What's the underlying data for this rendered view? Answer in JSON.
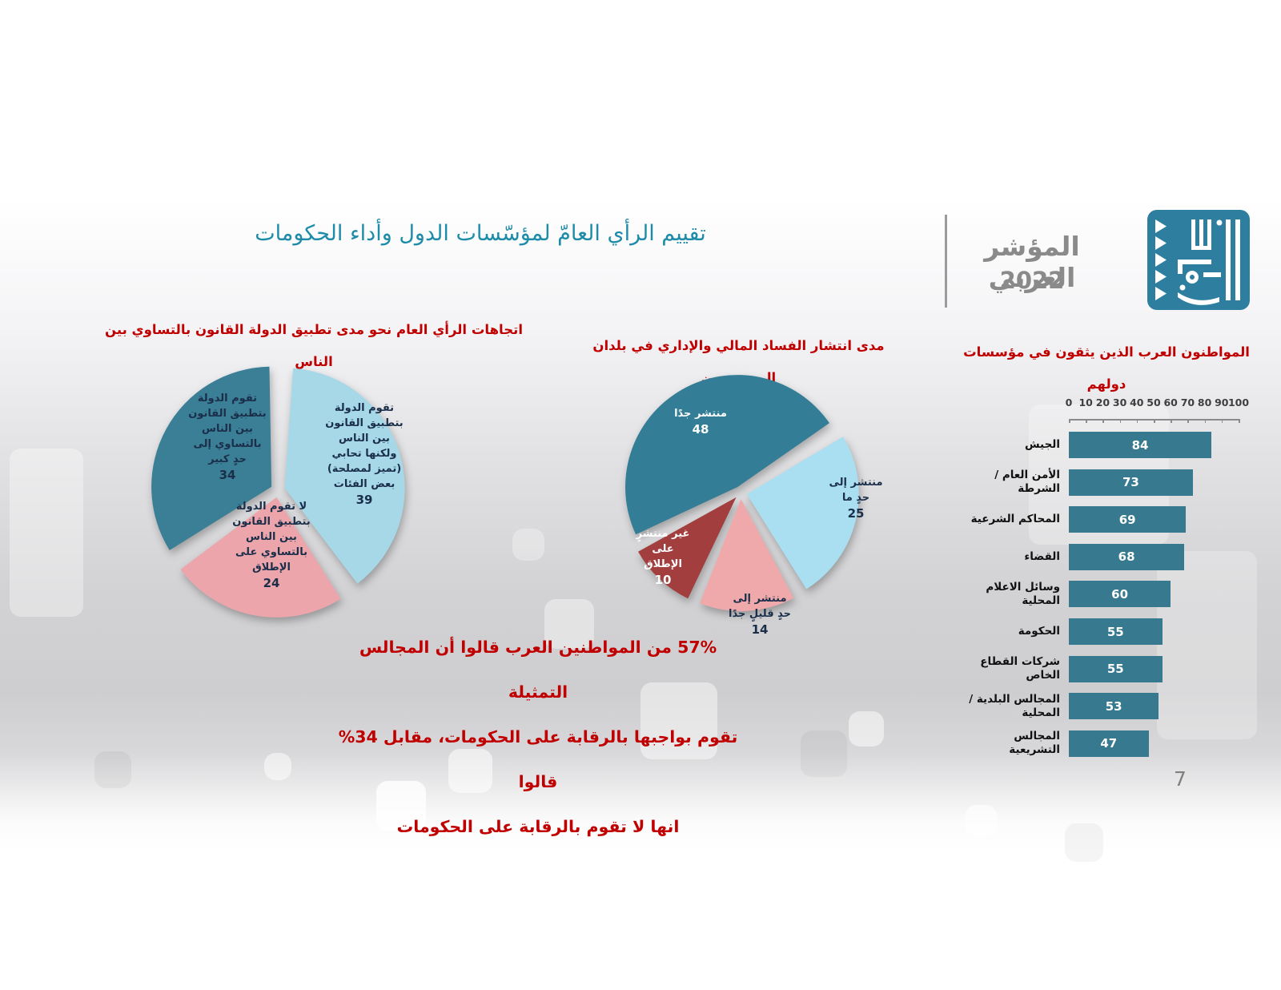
{
  "header": {
    "brand_title": "المؤشر العربي",
    "year": "2022",
    "logo_name": "arab-center-logo",
    "logo_color": "#2E7F9F",
    "text_color": "#8A8A8A"
  },
  "main_title": "تقييم الرأي العامّ لمؤسّسات الدول وأداء الحكومات",
  "main_title_color": "#1E8CA8",
  "accent_red": "#C00000",
  "stat_note": {
    "line1": "57% من المواطنين العرب قالوا أن المجالس التمثيلة",
    "line2": "تقوم بواجبها بالرقابة على الحكومات، مقابل 34% قالوا",
    "line3": "انها لا تقوم بالرقابة على الحكومات"
  },
  "page_number": "7",
  "chart_data": [
    {
      "id": "law-equality-pie",
      "type": "pie",
      "title": "اتجاهات الرأي العام نحو مدى تطبيق الدولة القانون بالتساوي بين الناس",
      "slices": [
        {
          "label": "تقوم الدولة\nبتطبيق القانون\nبين الناس\nبالتساوي إلى\nحدٍ كبير",
          "value": 34,
          "color": "#3B7F96",
          "label_color": "#1A2E4A"
        },
        {
          "label": "تقوم الدولة\nبتطبيق القانون\nبين الناس\nولكنها تحابي\n(تميز لمصلحة)\nبعض الفئات",
          "value": 39,
          "color": "#A6D8E8",
          "label_color": "#1A2E4A"
        },
        {
          "label": "لا تقوم الدولة\nبتطبيق القانون\nبين الناس\nبالتساوي على\nالإطلاق",
          "value": 24,
          "color": "#EDA5AC",
          "label_color": "#1A2E4A"
        }
      ]
    },
    {
      "id": "corruption-pie",
      "type": "pie",
      "title": "مدى انتشار الفساد المالي والإداري في بلدان المستجيبين",
      "slices": [
        {
          "label": "منتشر جدًا",
          "value": 48,
          "color": "#337D96",
          "label_color": "#FFFFFF"
        },
        {
          "label": "منتشر إلى\nحدٍ ما",
          "value": 25,
          "color": "#A9DFF0",
          "label_color": "#1A2E4A"
        },
        {
          "label": "منتشر إلى\nحدٍ قليلٍ جدًا",
          "value": 14,
          "color": "#EFA9AB",
          "label_color": "#1A2E4A"
        },
        {
          "label": "غير منتشرٍ\nعلى\nالإطلاق",
          "value": 10,
          "color": "#A23E3D",
          "label_color": "#FFFFFF"
        }
      ]
    },
    {
      "id": "trust-bars",
      "type": "bar",
      "title": "المواطنون العرب الذين يثقون في مؤسسات دولهم",
      "title_lines": [
        "المواطنون العرب الذين يثقون في مؤسسات",
        "دولهم"
      ],
      "categories": [
        "الجيش",
        "الأمن العام /الشرطة",
        "المحاكم الشرعية",
        "القضاء",
        "وسائل الاعلام المحلية",
        "الحكومة",
        "شركات القطاع الخاص",
        "المجالس البلدية /المحلية",
        "المجالس التشريعية"
      ],
      "values": [
        84,
        73,
        69,
        68,
        60,
        55,
        55,
        53,
        47
      ],
      "bar_color": "#37798F",
      "value_label_color": "#FFFFFF",
      "xlim": [
        0,
        100
      ],
      "x_ticks": [
        "0",
        "10",
        "20",
        "30",
        "40",
        "50",
        "60",
        "70",
        "80",
        "90",
        "100"
      ],
      "axis_position": "top",
      "grid": false
    }
  ]
}
